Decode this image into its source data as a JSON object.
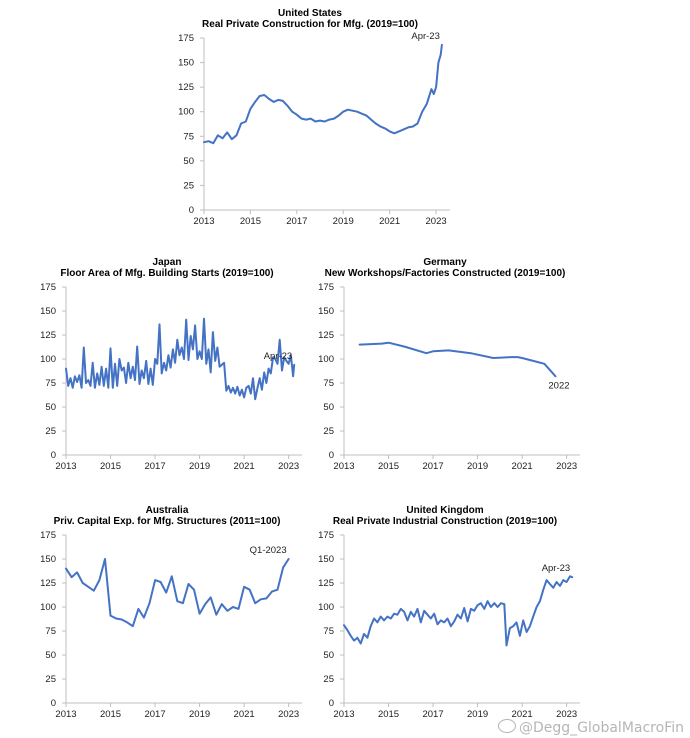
{
  "accent": "#4472C4",
  "watermark": "@Degg_GlobalMacroFin",
  "chart_data": [
    {
      "id": "us",
      "type": "line",
      "title": "United States\nReal Private Construction for Mfg. (2019=100)",
      "country": "United States",
      "subtitle": "Real Private Construction for Mfg. (2019=100)",
      "xlim": [
        2013,
        2023.6
      ],
      "ylim": [
        0,
        175
      ],
      "xticks": [
        2013,
        2015,
        2017,
        2019,
        2021,
        2023
      ],
      "yticks": [
        0,
        25,
        50,
        75,
        100,
        125,
        150,
        175
      ],
      "annotation": {
        "text": "Apr-23",
        "x": 2023.25,
        "y": 168
      },
      "x": [
        2013.0,
        2013.2,
        2013.4,
        2013.6,
        2013.8,
        2014.0,
        2014.2,
        2014.4,
        2014.6,
        2014.8,
        2015.0,
        2015.2,
        2015.4,
        2015.6,
        2015.8,
        2016.0,
        2016.2,
        2016.4,
        2016.6,
        2016.8,
        2017.0,
        2017.2,
        2017.4,
        2017.6,
        2017.8,
        2018.0,
        2018.2,
        2018.4,
        2018.6,
        2018.8,
        2019.0,
        2019.2,
        2019.4,
        2019.6,
        2019.8,
        2020.0,
        2020.2,
        2020.4,
        2020.6,
        2020.8,
        2021.0,
        2021.2,
        2021.4,
        2021.6,
        2021.8,
        2022.0,
        2022.2,
        2022.4,
        2022.6,
        2022.8,
        2022.9,
        2023.0,
        2023.1,
        2023.2,
        2023.25
      ],
      "values": [
        69,
        70,
        68,
        76,
        73,
        79,
        72,
        76,
        88,
        90,
        103,
        110,
        116,
        117,
        113,
        110,
        112,
        111,
        106,
        100,
        97,
        93,
        92,
        93,
        90,
        91,
        90,
        92,
        93,
        96,
        100,
        102,
        101,
        100,
        98,
        96,
        92,
        88,
        85,
        83,
        80,
        78,
        80,
        82,
        84,
        85,
        88,
        100,
        108,
        123,
        118,
        125,
        150,
        158,
        168
      ]
    },
    {
      "id": "japan",
      "type": "line",
      "title": "Japan\nFloor Area of Mfg. Building Starts (2019=100)",
      "country": "Japan",
      "subtitle": "Floor Area of Mfg. Building Starts (2019=100)",
      "xlim": [
        2013,
        2023.6
      ],
      "ylim": [
        0,
        175
      ],
      "xticks": [
        2013,
        2015,
        2017,
        2019,
        2021,
        2023
      ],
      "yticks": [
        0,
        25,
        50,
        75,
        100,
        125,
        150,
        175
      ],
      "annotation": {
        "text": "Apr-23",
        "x": 2023.25,
        "y": 94
      },
      "x": [
        2013.0,
        2013.1,
        2013.2,
        2013.3,
        2013.4,
        2013.5,
        2013.6,
        2013.7,
        2013.8,
        2013.9,
        2014.0,
        2014.1,
        2014.2,
        2014.3,
        2014.4,
        2014.5,
        2014.6,
        2014.7,
        2014.8,
        2014.9,
        2015.0,
        2015.1,
        2015.2,
        2015.3,
        2015.4,
        2015.5,
        2015.6,
        2015.7,
        2015.8,
        2015.9,
        2016.0,
        2016.1,
        2016.2,
        2016.3,
        2016.4,
        2016.5,
        2016.6,
        2016.7,
        2016.8,
        2016.9,
        2017.0,
        2017.1,
        2017.2,
        2017.3,
        2017.4,
        2017.5,
        2017.6,
        2017.7,
        2017.8,
        2017.9,
        2018.0,
        2018.1,
        2018.2,
        2018.3,
        2018.4,
        2018.5,
        2018.6,
        2018.7,
        2018.8,
        2018.9,
        2019.0,
        2019.1,
        2019.2,
        2019.3,
        2019.4,
        2019.5,
        2019.6,
        2019.7,
        2019.8,
        2019.9,
        2020.0,
        2020.1,
        2020.2,
        2020.3,
        2020.4,
        2020.5,
        2020.6,
        2020.7,
        2020.8,
        2020.9,
        2021.0,
        2021.1,
        2021.2,
        2021.3,
        2021.4,
        2021.5,
        2021.6,
        2021.7,
        2021.8,
        2021.9,
        2022.0,
        2022.1,
        2022.2,
        2022.3,
        2022.4,
        2022.5,
        2022.6,
        2022.7,
        2022.8,
        2022.9,
        2023.0,
        2023.1,
        2023.2,
        2023.25
      ],
      "values": [
        90,
        72,
        80,
        70,
        82,
        76,
        83,
        70,
        112,
        75,
        78,
        72,
        96,
        70,
        85,
        73,
        92,
        72,
        90,
        70,
        111,
        70,
        95,
        72,
        100,
        88,
        91,
        75,
        96,
        80,
        92,
        78,
        113,
        74,
        88,
        80,
        98,
        74,
        90,
        73,
        100,
        95,
        136,
        85,
        96,
        88,
        104,
        91,
        110,
        96,
        120,
        104,
        112,
        100,
        141,
        99,
        124,
        110,
        135,
        100,
        108,
        100,
        142,
        95,
        110,
        86,
        128,
        98,
        112,
        92,
        94,
        96,
        67,
        72,
        65,
        70,
        64,
        71,
        62,
        68,
        60,
        70,
        72,
        64,
        80,
        58,
        70,
        80,
        68,
        86,
        75,
        90,
        85,
        102,
        100,
        95,
        120,
        88,
        102,
        98,
        95,
        104,
        82,
        94
      ]
    },
    {
      "id": "germany",
      "type": "line",
      "title": "Germany\nNew Workshops/Factories Constructed (2019=100)",
      "country": "Germany",
      "subtitle": "New Workshops/Factories Constructed (2019=100)",
      "xlim": [
        2013,
        2023.6
      ],
      "ylim": [
        0,
        175
      ],
      "xticks": [
        2013,
        2015,
        2017,
        2019,
        2021,
        2023
      ],
      "yticks": [
        0,
        25,
        50,
        75,
        100,
        125,
        150,
        175
      ],
      "annotation": {
        "text": "2022",
        "x": 2022.0,
        "y": 82
      },
      "x": [
        2013.7,
        2014.7,
        2015.0,
        2015.7,
        2016.7,
        2017.0,
        2017.7,
        2018.7,
        2019.7,
        2020.5,
        2020.8,
        2021.0,
        2021.5,
        2022.0,
        2022.5
      ],
      "values": [
        115,
        116,
        117,
        113,
        106,
        108,
        109,
        106,
        101,
        102,
        102,
        101,
        98,
        95,
        82
      ]
    },
    {
      "id": "australia",
      "type": "line",
      "title": "Australia\nPriv. Capital Exp. for Mfg. Structures (2011=100)",
      "country": "Australia",
      "subtitle": "Priv. Capital Exp. for Mfg. Structures (2011=100)",
      "xlim": [
        2013,
        2023.6
      ],
      "ylim": [
        0,
        175
      ],
      "xticks": [
        2013,
        2015,
        2017,
        2019,
        2021,
        2023
      ],
      "yticks": [
        0,
        25,
        50,
        75,
        100,
        125,
        150,
        175
      ],
      "annotation": {
        "text": "Q1-2023",
        "x": 2023.0,
        "y": 150
      },
      "x": [
        2013.0,
        2013.25,
        2013.5,
        2013.75,
        2014.0,
        2014.25,
        2014.5,
        2014.75,
        2015.0,
        2015.25,
        2015.5,
        2015.75,
        2016.0,
        2016.25,
        2016.5,
        2016.75,
        2017.0,
        2017.25,
        2017.5,
        2017.75,
        2018.0,
        2018.25,
        2018.5,
        2018.75,
        2019.0,
        2019.25,
        2019.5,
        2019.75,
        2020.0,
        2020.25,
        2020.5,
        2020.75,
        2021.0,
        2021.25,
        2021.5,
        2021.75,
        2022.0,
        2022.25,
        2022.5,
        2022.75,
        2023.0
      ],
      "values": [
        140,
        131,
        136,
        125,
        121,
        117,
        128,
        150,
        91,
        88,
        87,
        84,
        80,
        98,
        89,
        104,
        128,
        126,
        115,
        132,
        106,
        104,
        124,
        118,
        93,
        103,
        110,
        92,
        103,
        96,
        100,
        98,
        121,
        118,
        104,
        108,
        109,
        116,
        118,
        141,
        150
      ]
    },
    {
      "id": "uk",
      "type": "line",
      "title": "United Kingdom\nReal Private Industrial Construction (2019=100)",
      "country": "United Kingdom",
      "subtitle": "Real Private Industrial Construction (2019=100)",
      "xlim": [
        2013,
        2023.6
      ],
      "ylim": [
        0,
        175
      ],
      "xticks": [
        2013,
        2015,
        2017,
        2019,
        2021,
        2023
      ],
      "yticks": [
        0,
        25,
        50,
        75,
        100,
        125,
        150,
        175
      ],
      "annotation": {
        "text": "Apr-23",
        "x": 2023.25,
        "y": 131
      },
      "x": [
        2013.0,
        2013.15,
        2013.3,
        2013.45,
        2013.6,
        2013.75,
        2013.9,
        2014.05,
        2014.2,
        2014.35,
        2014.5,
        2014.65,
        2014.8,
        2014.95,
        2015.1,
        2015.25,
        2015.4,
        2015.55,
        2015.7,
        2015.85,
        2016.0,
        2016.15,
        2016.3,
        2016.45,
        2016.6,
        2016.75,
        2016.9,
        2017.05,
        2017.2,
        2017.35,
        2017.5,
        2017.65,
        2017.8,
        2017.95,
        2018.1,
        2018.25,
        2018.4,
        2018.55,
        2018.7,
        2018.85,
        2019.0,
        2019.15,
        2019.3,
        2019.45,
        2019.6,
        2019.75,
        2019.9,
        2020.05,
        2020.2,
        2020.3,
        2020.45,
        2020.6,
        2020.75,
        2020.9,
        2021.05,
        2021.2,
        2021.35,
        2021.5,
        2021.65,
        2021.8,
        2021.95,
        2022.1,
        2022.25,
        2022.4,
        2022.55,
        2022.7,
        2022.85,
        2023.0,
        2023.15,
        2023.25
      ],
      "values": [
        81,
        76,
        70,
        65,
        68,
        62,
        72,
        68,
        80,
        88,
        84,
        90,
        86,
        90,
        88,
        93,
        92,
        98,
        95,
        86,
        95,
        90,
        98,
        84,
        96,
        92,
        88,
        93,
        82,
        86,
        84,
        88,
        80,
        85,
        92,
        88,
        99,
        85,
        98,
        96,
        102,
        104,
        98,
        106,
        100,
        104,
        100,
        104,
        103,
        60,
        78,
        80,
        84,
        70,
        86,
        74,
        80,
        90,
        100,
        106,
        118,
        128,
        124,
        120,
        126,
        122,
        128,
        126,
        132,
        131
      ]
    }
  ]
}
